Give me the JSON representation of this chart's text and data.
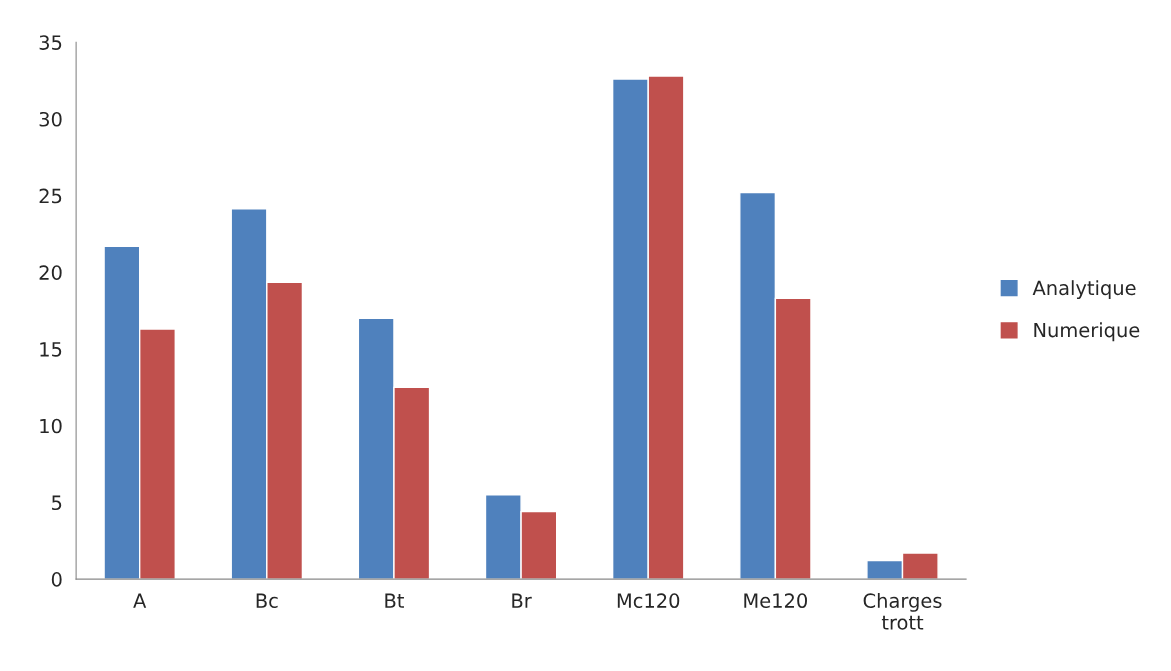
{
  "chart_data": {
    "type": "bar",
    "categories": [
      "A",
      "Bc",
      "Bt",
      "Br",
      "Mc120",
      "Me120",
      "Charges\ntrott"
    ],
    "series": [
      {
        "name": "Analytique",
        "color": "#4f81bd",
        "values": [
          21.7,
          24.15,
          17.0,
          5.5,
          32.6,
          25.2,
          1.2
        ]
      },
      {
        "name": "Numerique",
        "color": "#c0504d",
        "values": [
          16.3,
          19.35,
          12.5,
          4.4,
          32.8,
          18.3,
          1.7
        ]
      }
    ],
    "ylim": [
      0,
      35
    ],
    "yticks": [
      0,
      5,
      10,
      15,
      20,
      25,
      30,
      35
    ],
    "grid": false,
    "legend": "right"
  }
}
